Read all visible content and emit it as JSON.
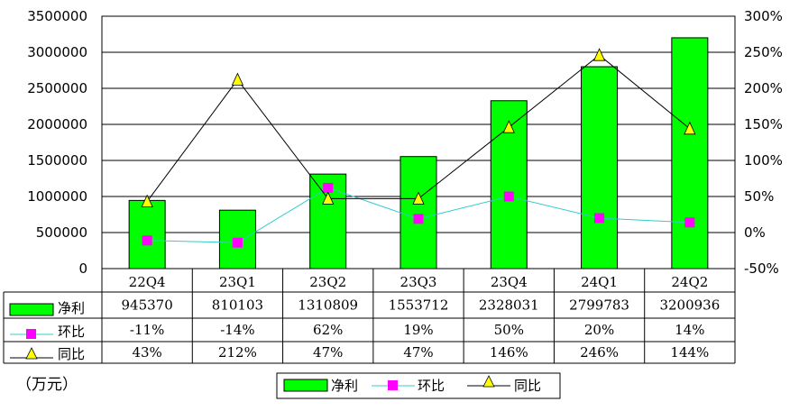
{
  "chart_data": {
    "type": "bar+line",
    "categories": [
      "22Q4",
      "23Q1",
      "23Q2",
      "23Q3",
      "23Q4",
      "24Q1",
      "24Q2"
    ],
    "series": [
      {
        "name": "净利",
        "kind": "bar",
        "axis": "left",
        "values": [
          945370,
          810103,
          1310809,
          1553712,
          2328031,
          2799783,
          3200936
        ],
        "labels": [
          "945370",
          "810103",
          "1310809",
          "1553712",
          "2328031",
          "2799783",
          "3200936"
        ]
      },
      {
        "name": "环比",
        "kind": "line",
        "axis": "right",
        "values": [
          -11,
          -14,
          62,
          19,
          50,
          20,
          14
        ],
        "labels": [
          "-11%",
          "-14%",
          "62%",
          "19%",
          "50%",
          "20%",
          "14%"
        ]
      },
      {
        "name": "同比",
        "kind": "line",
        "axis": "right",
        "values": [
          43,
          212,
          47,
          47,
          146,
          246,
          144
        ],
        "labels": [
          "43%",
          "212%",
          "47%",
          "47%",
          "146%",
          "246%",
          "144%"
        ]
      }
    ],
    "y_left": {
      "ylim": [
        0,
        3500000
      ],
      "ticks": [
        "0",
        "500000",
        "1000000",
        "1500000",
        "2000000",
        "2500000",
        "3000000",
        "3500000"
      ]
    },
    "y_right": {
      "ylim": [
        -50,
        300
      ],
      "ticks": [
        "-50%",
        "0%",
        "50%",
        "100%",
        "150%",
        "200%",
        "250%",
        "300%"
      ]
    },
    "unit_label": "（万元）",
    "legend": [
      "净利",
      "环比",
      "同比"
    ],
    "colors": {
      "bar": "#00ff00",
      "bar_edge": "#000000",
      "qoq": "#33cccc",
      "qoq_marker": "#ff00ff",
      "yoy": "#000000",
      "yoy_marker": "#ffff00",
      "grid": "#000000"
    }
  }
}
